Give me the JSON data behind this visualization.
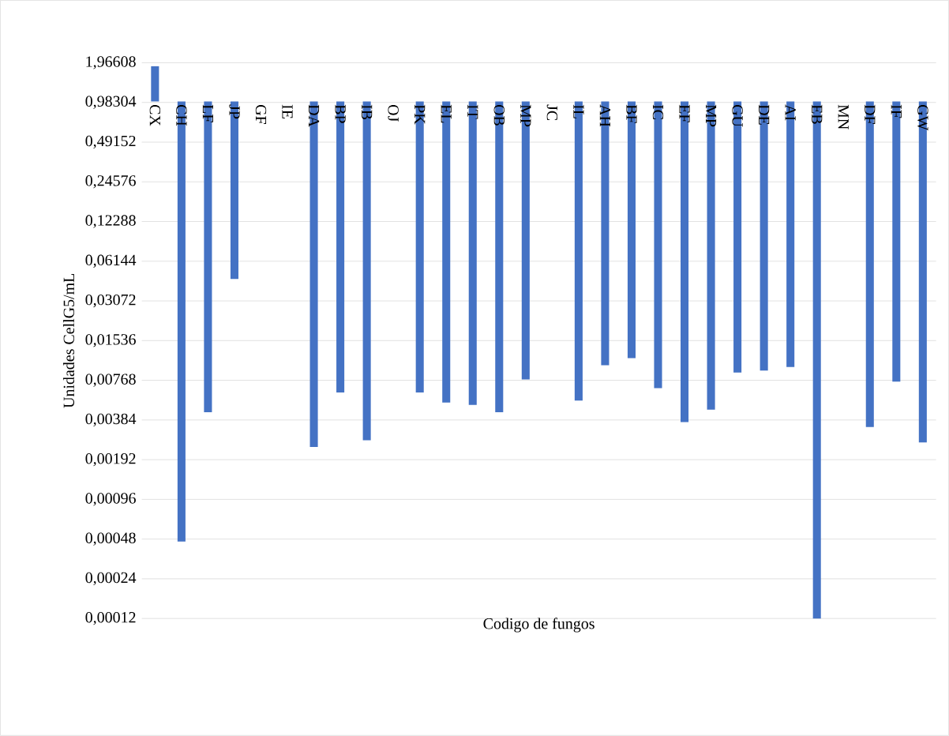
{
  "chart_data": {
    "type": "bar",
    "xlabel": "Codigo de fungos",
    "ylabel": "Unidades CellG5/mL",
    "categories": [
      "CX",
      "CH",
      "LF",
      "JP",
      "GF",
      "IE",
      "DA",
      "BP",
      "IB",
      "OJ",
      "PK",
      "EL",
      "IT",
      "OB",
      "MP",
      "JC",
      "IL",
      "AH",
      "BF",
      "IC",
      "EF",
      "MP",
      "GU",
      "DE",
      "AI",
      "EB",
      "MN",
      "DF",
      "IF",
      "GW"
    ],
    "base": [
      1,
      1,
      1,
      1,
      null,
      null,
      1,
      1,
      1,
      null,
      1,
      1,
      1,
      1,
      1,
      null,
      1,
      1,
      1,
      1,
      1,
      1,
      1,
      1,
      1,
      1,
      null,
      1,
      1,
      1
    ],
    "values": [
      0.85,
      -0.99954,
      -0.9956,
      -0.955,
      null,
      null,
      -0.9976,
      -0.9938,
      -0.9973,
      null,
      -0.9938,
      -0.9948,
      -0.995,
      -0.9956,
      -0.9922,
      null,
      -0.9946,
      -0.99,
      -0.9887,
      -0.9933,
      -0.9963,
      -0.9954,
      -0.9912,
      -0.9909,
      -0.9903,
      -0.99988,
      null,
      -0.9966,
      -0.9925,
      -0.9974
    ],
    "color": "#4472c4",
    "log": "y",
    "grid": "y",
    "ylim": [
      0.00012,
      1.96608
    ],
    "yticks": [
      {
        "value": 0.00012,
        "label": "0,00012"
      },
      {
        "value": 0.00024,
        "label": "0,00024"
      },
      {
        "value": 0.00048,
        "label": "0,00048"
      },
      {
        "value": 0.00096,
        "label": "0,00096"
      },
      {
        "value": 0.00192,
        "label": "0,00192"
      },
      {
        "value": 0.00384,
        "label": "0,00384"
      },
      {
        "value": 0.00768,
        "label": "0,00768"
      },
      {
        "value": 0.01536,
        "label": "0,01536"
      },
      {
        "value": 0.03072,
        "label": "0,03072"
      },
      {
        "value": 0.06144,
        "label": "0,06144"
      },
      {
        "value": 0.12288,
        "label": "0,12288"
      },
      {
        "value": 0.24576,
        "label": "0,24576"
      },
      {
        "value": 0.49152,
        "label": "0,49152"
      },
      {
        "value": 0.98304,
        "label": "0,98304"
      },
      {
        "value": 1.96608,
        "label": "1,96608"
      }
    ]
  }
}
